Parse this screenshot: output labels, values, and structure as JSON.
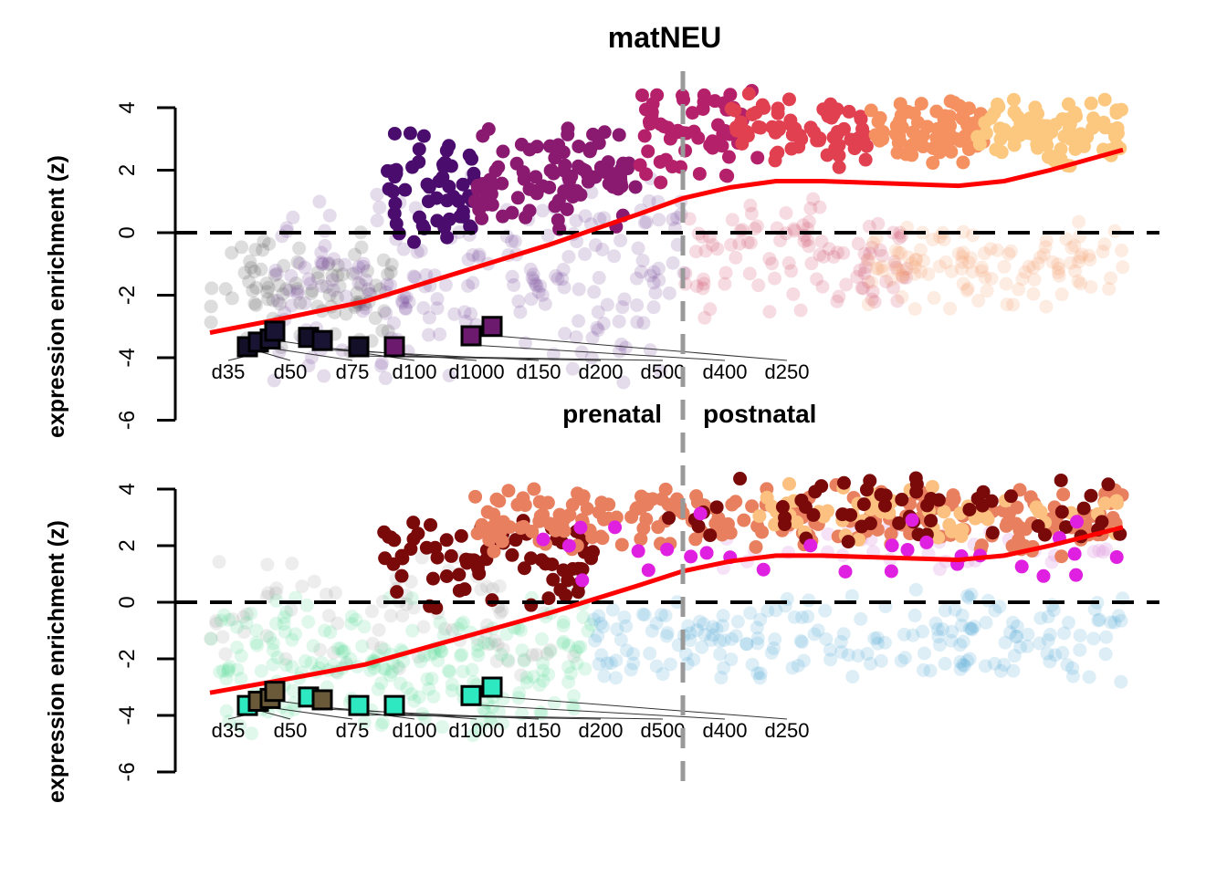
{
  "chart_data": [
    {
      "type": "scatter",
      "title": "matNEU",
      "ylabel": "expression enrichment (z)",
      "ylim": [
        -6,
        4
      ],
      "yticks": [
        "4",
        "2",
        "0",
        "-2",
        "-4",
        "-6"
      ],
      "ytick_values": [
        4,
        2,
        0,
        -2,
        -4,
        -6
      ],
      "xlim": [
        0,
        100
      ],
      "hline": 0,
      "vline": 51.8,
      "annotations": [
        "prenatal",
        "postnatal"
      ],
      "trend": {
        "color": "#ff0000",
        "x": [
          0,
          7,
          17,
          27,
          37,
          47,
          51.8,
          57,
          62,
          67,
          77,
          82,
          87,
          92,
          100
        ],
        "y": [
          -3.2,
          -2.8,
          -2.2,
          -1.3,
          -0.4,
          0.6,
          1.1,
          1.45,
          1.65,
          1.65,
          1.55,
          1.5,
          1.65,
          2.0,
          2.65
        ]
      },
      "markers": [
        {
          "label": "d35",
          "x": 4.1,
          "y": -3.65,
          "color": "#14102a"
        },
        {
          "label": "d50",
          "x": 5.3,
          "y": -3.5,
          "color": "#1a1434"
        },
        {
          "label": "d75",
          "x": 6.6,
          "y": -3.4,
          "color": "#1a1434"
        },
        {
          "label": "d100",
          "x": 7.1,
          "y": -3.15,
          "color": "#1a1434"
        },
        {
          "label": "d1000",
          "x": 10.8,
          "y": -3.35,
          "color": "#14102a"
        },
        {
          "label": "d150",
          "x": 12.3,
          "y": -3.45,
          "color": "#1a1434"
        },
        {
          "label": "d200",
          "x": 16.3,
          "y": -3.65,
          "color": "#14102a"
        },
        {
          "label": "d500",
          "x": 20.2,
          "y": -3.65,
          "color": "#6b1a6e"
        },
        {
          "label": "d400",
          "x": 28.6,
          "y": -3.3,
          "color": "#6b1a6e"
        },
        {
          "label": "d250",
          "x": 30.9,
          "y": -3.0,
          "color": "#6b1a6e"
        }
      ],
      "point_groups": [
        {
          "color": "#555555",
          "alpha": 0.2,
          "x": [
            0,
            20
          ],
          "y": [
            -4.2,
            0.5
          ],
          "n": 90
        },
        {
          "color": "#7a4a9a",
          "alpha": 0.2,
          "x": [
            7,
            52
          ],
          "y": [
            -5,
            2
          ],
          "n": 220
        },
        {
          "color": "#d05070",
          "alpha": 0.2,
          "x": [
            52,
            77
          ],
          "y": [
            -3,
            1.5
          ],
          "n": 100
        },
        {
          "color": "#f5a070",
          "alpha": 0.2,
          "x": [
            72,
            100
          ],
          "y": [
            -2.6,
            0.5
          ],
          "n": 110
        },
        {
          "color": "#4a0d6e",
          "alpha": 1,
          "x": [
            19,
            29
          ],
          "y": [
            -0.6,
            3.6
          ],
          "n": 55
        },
        {
          "color": "#8a1a70",
          "alpha": 1,
          "x": [
            29,
            47
          ],
          "y": [
            0,
            3.6
          ],
          "n": 95
        },
        {
          "color": "#b5206a",
          "alpha": 1,
          "x": [
            47,
            60
          ],
          "y": [
            1.5,
            4.8
          ],
          "n": 60
        },
        {
          "color": "#e04050",
          "alpha": 1,
          "x": [
            57,
            72
          ],
          "y": [
            2,
            4.5
          ],
          "n": 70
        },
        {
          "color": "#f59060",
          "alpha": 1,
          "x": [
            72,
            85
          ],
          "y": [
            2,
            4.3
          ],
          "n": 80
        },
        {
          "color": "#fcc880",
          "alpha": 1,
          "x": [
            84,
            100
          ],
          "y": [
            2,
            4.4
          ],
          "n": 90
        }
      ]
    },
    {
      "type": "scatter",
      "ylabel": "expression enrichment (z)",
      "ylim": [
        -6,
        4
      ],
      "yticks": [
        "4",
        "2",
        "0",
        "-2",
        "-4",
        "-6"
      ],
      "ytick_values": [
        4,
        2,
        0,
        -2,
        -4,
        -6
      ],
      "xlim": [
        0,
        100
      ],
      "hline": 0,
      "vline": 51.8,
      "trend": {
        "color": "#ff0000",
        "x": [
          0,
          7,
          17,
          27,
          37,
          47,
          51.8,
          57,
          62,
          67,
          77,
          82,
          87,
          92,
          100
        ],
        "y": [
          -3.2,
          -2.8,
          -2.2,
          -1.3,
          -0.4,
          0.6,
          1.1,
          1.45,
          1.65,
          1.65,
          1.55,
          1.5,
          1.65,
          2.0,
          2.65
        ]
      },
      "markers": [
        {
          "label": "d35",
          "x": 4.1,
          "y": -3.65,
          "color": "#2de8c0"
        },
        {
          "label": "d50",
          "x": 5.3,
          "y": -3.5,
          "color": "#6b5a3a"
        },
        {
          "label": "d75",
          "x": 6.6,
          "y": -3.4,
          "color": "#6b5a3a"
        },
        {
          "label": "d100",
          "x": 7.1,
          "y": -3.15,
          "color": "#6b5a3a"
        },
        {
          "label": "d1000",
          "x": 10.8,
          "y": -3.35,
          "color": "#2de8c0"
        },
        {
          "label": "d150",
          "x": 12.3,
          "y": -3.45,
          "color": "#6b5a3a"
        },
        {
          "label": "d200",
          "x": 16.3,
          "y": -3.65,
          "color": "#2de8c0"
        },
        {
          "label": "d500",
          "x": 20.2,
          "y": -3.65,
          "color": "#2de8c0"
        },
        {
          "label": "d400",
          "x": 28.6,
          "y": -3.3,
          "color": "#2de8c0"
        },
        {
          "label": "d250",
          "x": 30.9,
          "y": -3.0,
          "color": "#2de8c0"
        }
      ],
      "point_groups": [
        {
          "color": "#50d890",
          "alpha": 0.18,
          "x": [
            0,
            42
          ],
          "y": [
            -5,
            0.5
          ],
          "n": 220
        },
        {
          "color": "#888888",
          "alpha": 0.15,
          "x": [
            0,
            40
          ],
          "y": [
            -3,
            2
          ],
          "n": 80
        },
        {
          "color": "#40a0d0",
          "alpha": 0.18,
          "x": [
            42,
            100
          ],
          "y": [
            -3,
            0.6
          ],
          "n": 200
        },
        {
          "color": "#e0a0e0",
          "alpha": 0.3,
          "x": [
            55,
            100
          ],
          "y": [
            1,
            3
          ],
          "n": 40
        },
        {
          "color": "#7a0a0a",
          "alpha": 1,
          "x": [
            19,
            42
          ],
          "y": [
            -0.6,
            3.6
          ],
          "n": 75
        },
        {
          "color": "#e88060",
          "alpha": 1,
          "x": [
            29,
            100
          ],
          "y": [
            1.5,
            4.3
          ],
          "n": 230
        },
        {
          "color": "#fcc080",
          "alpha": 1,
          "x": [
            60,
            100
          ],
          "y": [
            2,
            4.3
          ],
          "n": 60
        },
        {
          "color": "#7a0a0a",
          "alpha": 1,
          "x": [
            50,
            100
          ],
          "y": [
            2,
            4.5
          ],
          "n": 60
        },
        {
          "color": "#e020e0",
          "alpha": 1,
          "x": [
            35,
            100
          ],
          "y": [
            0,
            3.2
          ],
          "n": 30
        }
      ]
    }
  ]
}
